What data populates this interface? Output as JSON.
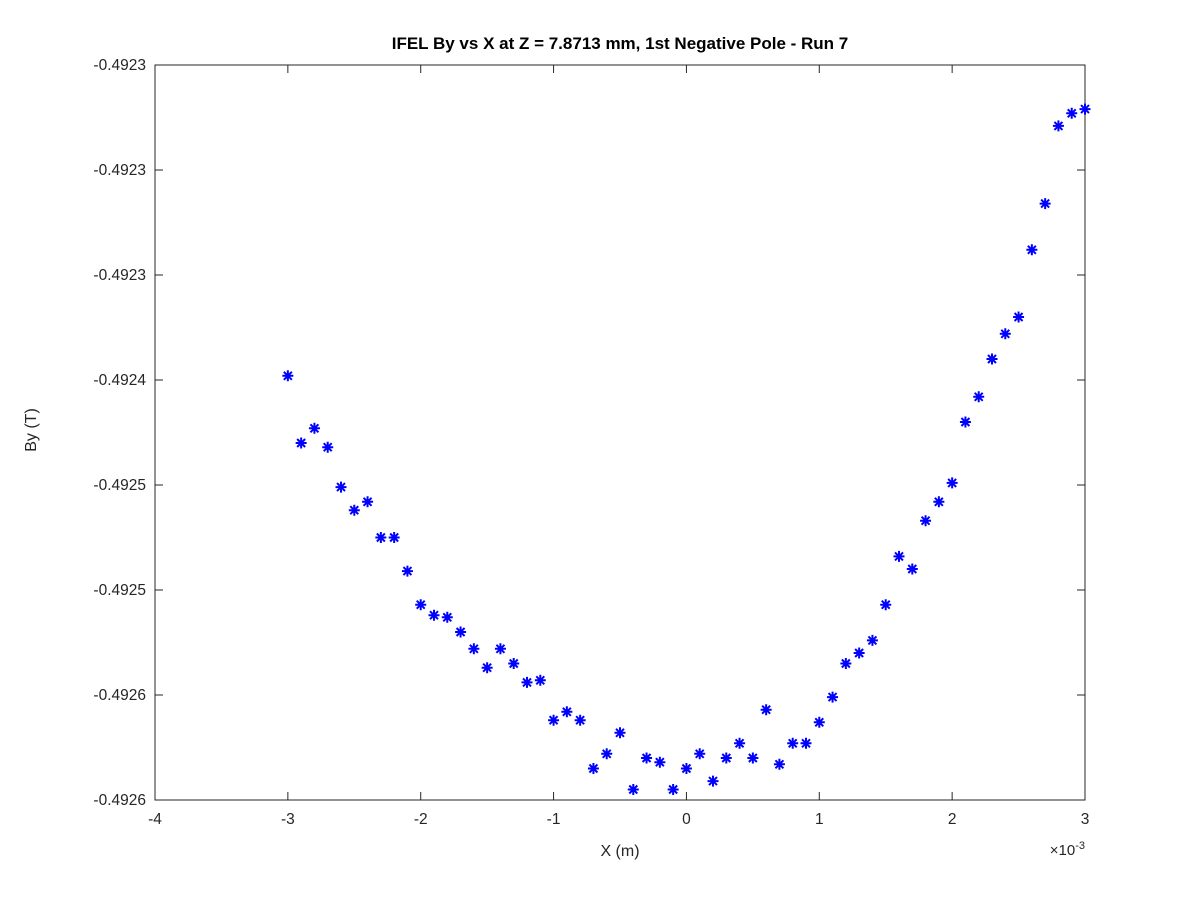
{
  "figure": {
    "background_color": "#ffffff"
  },
  "chart_data": {
    "type": "scatter",
    "title": "IFEL By vs X at Z = 7.8713 mm, 1st Negative Pole - Run 7",
    "xlabel": "X (m)",
    "ylabel": "By (T)",
    "x_axis_offset_base": "×10",
    "x_axis_offset_exponent": "-3",
    "x_unit_scale": "1e-3",
    "marker": "asterisk",
    "marker_color": "#0000ff",
    "axis_color": "#262626",
    "title_color": "#000000",
    "grid": false,
    "legend": "none",
    "xlim": [
      -4,
      3
    ],
    "ylim": [
      -0.4926,
      -0.49225
    ],
    "xticks": {
      "values": [
        -4,
        -3,
        -2,
        -1,
        0,
        1,
        2,
        3
      ],
      "labels": [
        "-4",
        "-3",
        "-2",
        "-1",
        "0",
        "1",
        "2",
        "3"
      ]
    },
    "yticks": {
      "values": [
        -0.4926,
        -0.49255,
        -0.4925,
        -0.49245,
        -0.4924,
        -0.49235,
        -0.4923,
        -0.49225
      ],
      "labels": [
        "-0.4926",
        "-0.4926",
        "-0.4925",
        "-0.4925",
        "-0.4924",
        "-0.4923",
        "-0.4923",
        "-0.4923"
      ]
    },
    "x": [
      -3.0,
      -2.9,
      -2.8,
      -2.7,
      -2.6,
      -2.5,
      -2.4,
      -2.3,
      -2.2,
      -2.1,
      -2.0,
      -1.9,
      -1.8,
      -1.7,
      -1.6,
      -1.5,
      -1.4,
      -1.3,
      -1.2,
      -1.1,
      -1.0,
      -0.9,
      -0.8,
      -0.7,
      -0.6,
      -0.5,
      -0.4,
      -0.3,
      -0.2,
      -0.1,
      0.0,
      0.1,
      0.2,
      0.3,
      0.4,
      0.5,
      0.6,
      0.7,
      0.8,
      0.9,
      1.0,
      1.1,
      1.2,
      1.3,
      1.4,
      1.5,
      1.6,
      1.7,
      1.8,
      1.9,
      2.0,
      2.1,
      2.2,
      2.3,
      2.4,
      2.5,
      2.6,
      2.7,
      2.8,
      2.9,
      3.0
    ],
    "by": [
      -0.492398,
      -0.49243,
      -0.492423,
      -0.492432,
      -0.492451,
      -0.492462,
      -0.492458,
      -0.492475,
      -0.492475,
      -0.492491,
      -0.492507,
      -0.492512,
      -0.492513,
      -0.49252,
      -0.492528,
      -0.492537,
      -0.492528,
      -0.492535,
      -0.492544,
      -0.492543,
      -0.492562,
      -0.492558,
      -0.492562,
      -0.492585,
      -0.492578,
      -0.492568,
      -0.492595,
      -0.49258,
      -0.492582,
      -0.492595,
      -0.492585,
      -0.492578,
      -0.492591,
      -0.49258,
      -0.492573,
      -0.49258,
      -0.492557,
      -0.492583,
      -0.492573,
      -0.492573,
      -0.492563,
      -0.492551,
      -0.492535,
      -0.49253,
      -0.492524,
      -0.492507,
      -0.492484,
      -0.49249,
      -0.492467,
      -0.492458,
      -0.492449,
      -0.49242,
      -0.492408,
      -0.49239,
      -0.492378,
      -0.49237,
      -0.492338,
      -0.492316,
      -0.492279,
      -0.492273,
      -0.492271
    ]
  }
}
